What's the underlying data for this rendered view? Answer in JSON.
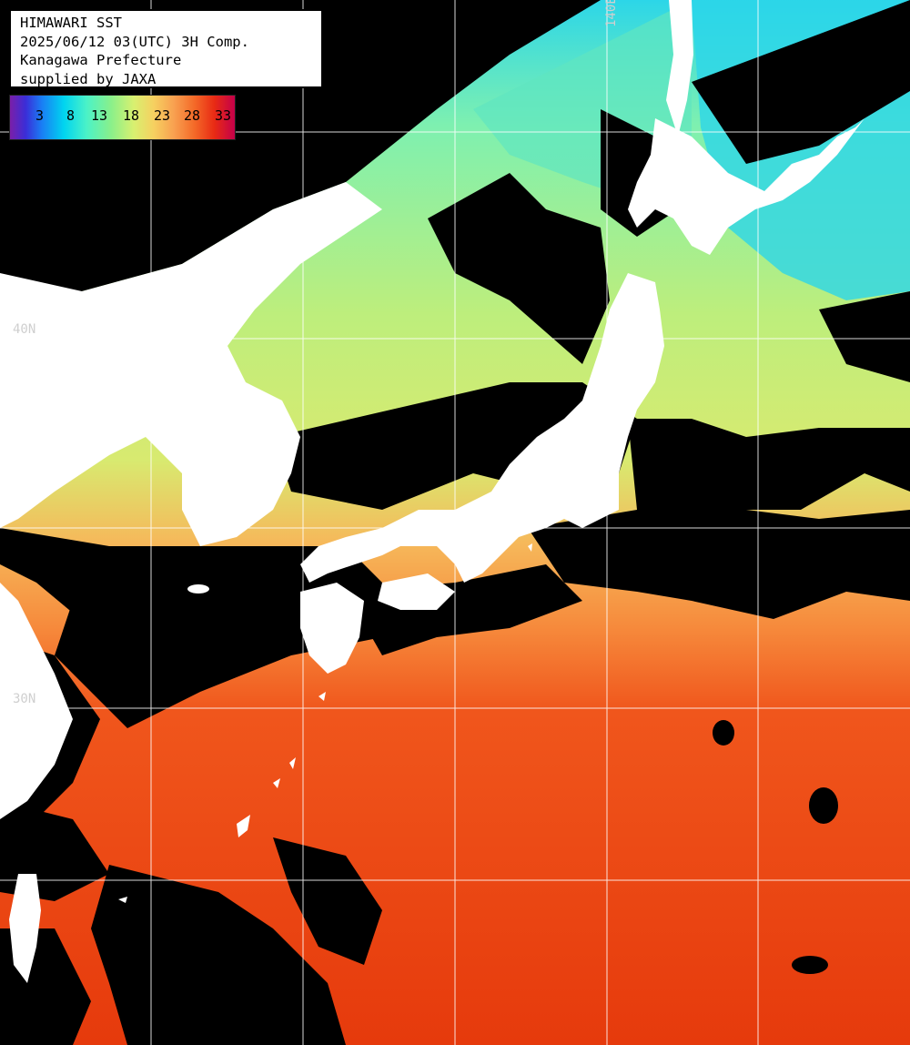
{
  "header": {
    "line1": "HIMAWARI SST",
    "line2": "2025/06/12 03(UTC) 3H Comp.",
    "line3": "Kanagawa Prefecture",
    "line4": "supplied by JAXA"
  },
  "legend": {
    "ticks": [
      "3",
      "8",
      "13",
      "18",
      "23",
      "28",
      "33"
    ]
  },
  "grid_labels": {
    "lon_140": "140E",
    "lat_40": "40N",
    "lat_30": "30N"
  },
  "colors": {
    "land": "#ffffff",
    "cloud": "#000000",
    "grid": "#ffffff",
    "sst_cold": "#2cd6e8",
    "sst_mid": "#b8ec78",
    "sst_warm": "#f6a04e",
    "sst_hot": "#e8380e"
  }
}
